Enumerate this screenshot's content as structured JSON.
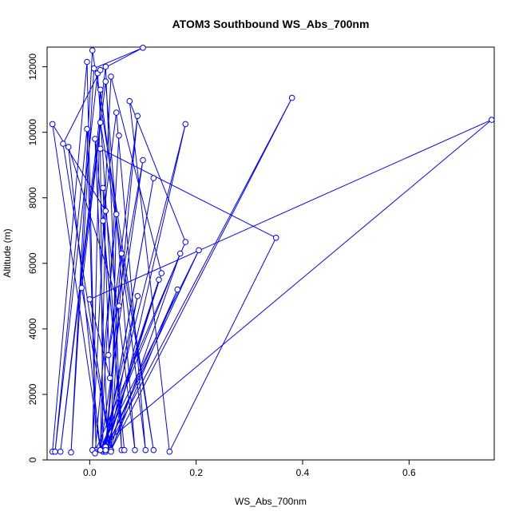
{
  "chart_data": {
    "type": "line",
    "title": "ATOM3 Southbound WS_Abs_700nm",
    "xlabel": "WS_Abs_700nm",
    "ylabel": "Altitude (m)",
    "xlim": [
      -0.08,
      0.76
    ],
    "ylim": [
      0,
      12600
    ],
    "x_ticks": [
      0.0,
      0.2,
      0.4,
      0.6
    ],
    "x_tick_labels": [
      "0.0",
      "0.2",
      "0.4",
      "0.6"
    ],
    "y_ticks": [
      0,
      2000,
      4000,
      6000,
      8000,
      10000,
      12000
    ],
    "y_tick_labels": [
      "0",
      "2000",
      "4000",
      "6000",
      "8000",
      "10000",
      "12000"
    ],
    "grid": false,
    "legend": "none",
    "line_color": "#0000ff",
    "marker": "open-circle",
    "series": [
      {
        "x": [
          -0.07,
          -0.005,
          0.012,
          -0.005,
          -0.065,
          0.015,
          0.06,
          0.03,
          -0.055,
          0.02,
          0.12,
          0.005,
          -0.035,
          0.008,
          0.1,
          0.02,
          -0.05,
          0.04,
          0.18,
          0.025,
          0.02,
          0.35,
          0.15,
          0.075,
          0.18,
          0.01,
          0.755,
          0.0,
          0.038,
          0.025,
          0.085,
          0.03,
          -0.015,
          0.04,
          0.38,
          0.03,
          0.135,
          0.04,
          0.005,
          0.02,
          0.105,
          0.05,
          0.025,
          0.065,
          0.01,
          0.035,
          0.09,
          0.025,
          0.13,
          0.03,
          0.165,
          0.04,
          0.055,
          -0.04,
          0.02,
          0.03,
          -0.07,
          0.02,
          0.055,
          0.02,
          0.1,
          0.035,
          0.09,
          0.03,
          0.12,
          0.03,
          0.06,
          0.03,
          0.205,
          0.02,
          0.17,
          0.04,
          0.05,
          0.01
        ],
        "y": [
          250,
          12150,
          300,
          10100,
          250,
          11800,
          300,
          12000,
          250,
          10300,
          300,
          12500,
          230,
          11950,
          12580,
          11900,
          9650,
          300,
          10250,
          250,
          9500,
          6780,
          250,
          10950,
          6650,
          250,
          10380,
          4900,
          2500,
          8300,
          300,
          11550,
          5250,
          300,
          11050,
          250,
          5700,
          11700,
          300,
          11300,
          300,
          10600,
          7300,
          300,
          9800,
          300,
          5000,
          300,
          5500,
          300,
          5200,
          300,
          4700,
          9550,
          300,
          7600,
          10250,
          300,
          9900,
          300,
          9150,
          3200,
          10500,
          350,
          8600,
          400,
          6300,
          300,
          6400,
          300,
          6300,
          250,
          7500,
          200
        ]
      }
    ]
  }
}
